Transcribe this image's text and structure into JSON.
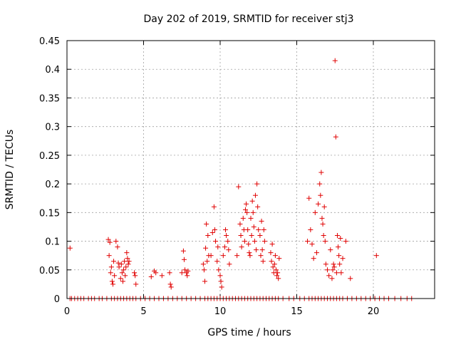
{
  "chart_data": {
    "type": "scatter",
    "title": "Day 202 of 2019, SRMTID for receiver stj3",
    "xlabel": "GPS time / hours",
    "ylabel": "SRMTID / TECUs",
    "xlim": [
      0,
      24
    ],
    "ylim": [
      0,
      0.45
    ],
    "xticks": [
      0,
      5,
      10,
      15,
      20
    ],
    "yticks": [
      0,
      0.05,
      0.1,
      0.15,
      0.2,
      0.25,
      0.3,
      0.35,
      0.4,
      0.45
    ],
    "xtick_labels": [
      "0",
      "5",
      "10",
      "15",
      "20"
    ],
    "ytick_labels": [
      "0",
      "0.05",
      "0.1",
      "0.15",
      "0.2",
      "0.25",
      "0.3",
      "0.35",
      "0.4",
      "0.45"
    ],
    "grid": true,
    "marker": "+",
    "color": "#e00000",
    "series": [
      {
        "x": [
          0.2,
          0.3,
          0.5,
          0.7,
          0.9,
          1.1,
          1.4,
          1.6,
          1.8,
          2.1,
          2.3,
          2.6,
          2.9,
          3.1,
          3.3,
          3.5,
          3.7,
          3.9,
          4.1,
          4.3,
          4.5,
          4.8,
          5.1,
          5.4,
          5.7,
          6.0,
          6.3,
          6.6,
          6.9,
          7.2,
          7.5,
          7.8,
          8.1,
          8.4,
          8.7,
          9.0,
          9.2,
          9.4,
          9.6,
          9.8,
          10.0,
          10.2,
          10.4,
          10.6,
          10.8,
          11.0,
          11.2,
          11.4,
          11.6,
          11.8,
          12.0,
          12.2,
          12.4,
          12.6,
          12.8,
          13.0,
          13.2,
          13.4,
          13.6,
          13.8,
          14.1,
          14.5,
          14.8,
          15.2,
          15.5,
          15.8,
          16.0,
          16.2,
          16.4,
          16.6,
          16.8,
          17.0,
          17.2,
          17.4,
          17.6,
          17.8,
          18.0,
          18.3,
          18.6,
          18.9,
          19.2,
          19.5,
          19.8,
          20.1,
          20.4,
          20.7,
          21.0,
          21.4,
          21.8,
          22.2,
          22.5,
          0.2,
          2.7,
          2.75,
          2.8,
          2.85,
          2.9,
          2.95,
          3.0,
          3.05,
          3.1,
          3.2,
          3.3,
          3.35,
          3.4,
          3.5,
          3.55,
          3.6,
          3.65,
          3.7,
          3.75,
          3.8,
          3.85,
          3.9,
          3.95,
          4.0,
          4.05,
          4.4,
          4.45,
          4.5,
          5.5,
          5.7,
          5.8,
          6.2,
          6.7,
          6.75,
          6.8,
          7.5,
          7.6,
          7.65,
          7.7,
          7.8,
          7.85,
          7.9,
          8.9,
          8.95,
          9.0,
          9.05,
          9.1,
          9.15,
          9.2,
          9.25,
          9.4,
          9.5,
          9.6,
          9.65,
          9.7,
          9.8,
          9.85,
          9.9,
          10.0,
          10.05,
          10.1,
          10.2,
          10.3,
          10.35,
          10.4,
          10.5,
          10.55,
          10.6,
          11.1,
          11.2,
          11.3,
          11.35,
          11.4,
          11.5,
          11.55,
          11.6,
          11.65,
          11.7,
          11.75,
          11.8,
          11.85,
          11.9,
          11.95,
          12.0,
          12.05,
          12.1,
          12.15,
          12.2,
          12.25,
          12.3,
          12.35,
          12.4,
          12.45,
          12.5,
          12.6,
          12.65,
          12.7,
          12.75,
          12.8,
          12.85,
          12.9,
          13.3,
          13.35,
          13.4,
          13.45,
          13.5,
          13.55,
          13.6,
          13.65,
          13.7,
          13.75,
          13.8,
          13.85,
          15.7,
          15.8,
          15.9,
          16.0,
          16.1,
          16.2,
          16.3,
          16.4,
          16.5,
          16.55,
          16.6,
          16.65,
          16.7,
          16.75,
          16.8,
          16.85,
          16.9,
          17.0,
          17.1,
          17.2,
          17.3,
          17.35,
          17.4,
          17.45,
          17.5,
          17.55,
          17.6,
          17.65,
          17.7,
          17.75,
          17.8,
          17.85,
          17.9,
          18.0,
          18.2,
          18.5,
          20.2
        ],
        "y": [
          0,
          0,
          0,
          0,
          0,
          0,
          0,
          0,
          0,
          0,
          0,
          0,
          0,
          0,
          0,
          0,
          0,
          0,
          0,
          0,
          0,
          0,
          0,
          0,
          0,
          0,
          0,
          0,
          0,
          0,
          0,
          0,
          0,
          0,
          0,
          0,
          0,
          0,
          0,
          0,
          0,
          0,
          0,
          0,
          0,
          0,
          0,
          0,
          0,
          0,
          0,
          0,
          0,
          0,
          0,
          0,
          0,
          0,
          0,
          0,
          0,
          0,
          0,
          0,
          0,
          0,
          0,
          0,
          0,
          0,
          0,
          0,
          0,
          0,
          0,
          0,
          0,
          0,
          0,
          0,
          0,
          0,
          0,
          0,
          0,
          0,
          0,
          0,
          0,
          0,
          0,
          0.088,
          0.103,
          0.075,
          0.098,
          0.045,
          0.055,
          0.03,
          0.025,
          0.065,
          0.04,
          0.1,
          0.09,
          0.062,
          0.055,
          0.035,
          0.06,
          0.045,
          0.03,
          0.05,
          0.065,
          0.04,
          0.055,
          0.08,
          0.07,
          0.06,
          0.065,
          0.045,
          0.04,
          0.025,
          0.038,
          0.048,
          0.045,
          0.04,
          0.045,
          0.025,
          0.02,
          0.045,
          0.083,
          0.068,
          0.05,
          0.045,
          0.04,
          0.048,
          0.06,
          0.05,
          0.03,
          0.088,
          0.13,
          0.065,
          0.11,
          0.075,
          0.075,
          0.115,
          0.16,
          0.12,
          0.1,
          0.065,
          0.09,
          0.05,
          0.04,
          0.03,
          0.02,
          0.075,
          0.09,
          0.12,
          0.11,
          0.1,
          0.085,
          0.06,
          0.075,
          0.195,
          0.13,
          0.11,
          0.09,
          0.14,
          0.12,
          0.1,
          0.155,
          0.165,
          0.15,
          0.12,
          0.095,
          0.08,
          0.075,
          0.14,
          0.11,
          0.17,
          0.15,
          0.125,
          0.1,
          0.18,
          0.085,
          0.2,
          0.16,
          0.12,
          0.11,
          0.075,
          0.135,
          0.085,
          0.065,
          0.12,
          0.1,
          0.08,
          0.065,
          0.095,
          0.055,
          0.045,
          0.06,
          0.075,
          0.05,
          0.04,
          0.045,
          0.035,
          0.07,
          0.1,
          0.175,
          0.12,
          0.095,
          0.07,
          0.15,
          0.08,
          0.165,
          0.2,
          0.18,
          0.22,
          0.14,
          0.13,
          0.11,
          0.16,
          0.1,
          0.06,
          0.05,
          0.04,
          0.085,
          0.035,
          0.05,
          0.06,
          0.055,
          0.415,
          0.282,
          0.045,
          0.11,
          0.09,
          0.075,
          0.06,
          0.105,
          0.045,
          0.07,
          0.1,
          0.035,
          0.075
        ]
      }
    ]
  }
}
